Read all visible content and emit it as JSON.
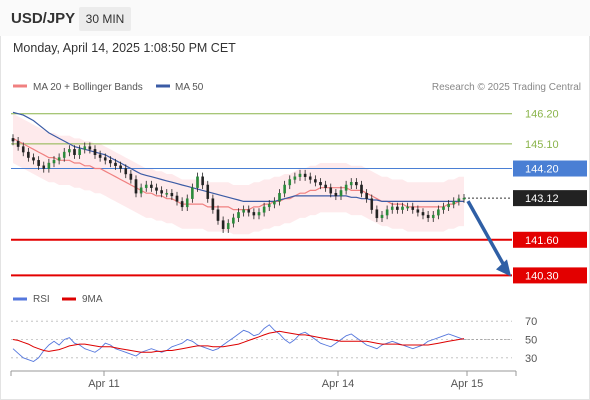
{
  "header": {
    "pair": "USD/JPY",
    "timeframe": "30 MIN",
    "datetime": "Monday, April 14, 2025 1:08:50 PM CET"
  },
  "legend": {
    "ma20_bollinger": "MA 20 + Bollinger Bands",
    "ma50": "MA 50",
    "credit": "Research © 2025 Trading Central",
    "rsi": "RSI",
    "rsi_ma": "9MA"
  },
  "colors": {
    "ma20": "#f08080",
    "ma50": "#3b5ba5",
    "band": "#fde3e6",
    "resistance": "#8ab44a",
    "pivot": "#4a7fd4",
    "support": "#e30000",
    "arrow": "#2f5fa5",
    "rsi": "#5577dd",
    "rsi_ma": "#dd0000"
  },
  "chart_data": [
    {
      "type": "line",
      "subtype": "candlestick",
      "title": "USD/JPY",
      "x_tick_labels": [
        "Apr 11",
        "Apr 14",
        "Apr 15"
      ],
      "ylim": [
        139.95,
        146.7
      ],
      "levels": [
        {
          "name": "resistance_2",
          "value": 146.2,
          "label": "146.20",
          "kind": "resistance"
        },
        {
          "name": "resistance_1",
          "value": 145.1,
          "label": "145.10",
          "kind": "resistance"
        },
        {
          "name": "pivot",
          "value": 144.2,
          "label": "144.20",
          "kind": "pivot"
        },
        {
          "name": "last_price",
          "value": 143.12,
          "label": "143.12",
          "kind": "last"
        },
        {
          "name": "support_1",
          "value": 141.6,
          "label": "141.60",
          "kind": "support"
        },
        {
          "name": "support_2",
          "value": 140.3,
          "label": "140.30",
          "kind": "support"
        }
      ],
      "candles_close": [
        145.2,
        145.0,
        144.8,
        144.6,
        144.5,
        144.3,
        144.2,
        144.4,
        144.5,
        144.6,
        144.8,
        144.9,
        144.7,
        144.9,
        145.0,
        144.9,
        144.7,
        144.6,
        144.5,
        144.4,
        144.3,
        144.2,
        144.0,
        143.8,
        143.3,
        143.5,
        143.6,
        143.5,
        143.4,
        143.3,
        143.3,
        143.2,
        143.0,
        142.8,
        143.1,
        143.5,
        143.9,
        143.6,
        143.1,
        142.7,
        142.3,
        142.0,
        142.2,
        142.4,
        142.6,
        142.7,
        142.6,
        142.5,
        142.6,
        142.8,
        142.9,
        143.0,
        143.3,
        143.6,
        143.8,
        143.9,
        144.0,
        143.9,
        143.8,
        143.7,
        143.6,
        143.5,
        143.3,
        143.2,
        143.4,
        143.6,
        143.7,
        143.6,
        143.3,
        143.1,
        142.7,
        142.4,
        142.5,
        142.7,
        142.8,
        142.7,
        142.8,
        142.8,
        142.7,
        142.6,
        142.5,
        142.4,
        142.5,
        142.7,
        142.8,
        142.9,
        143.0,
        143.1,
        143.12
      ],
      "ma20": [
        145.3,
        145.2,
        145.1,
        145.0,
        144.9,
        144.8,
        144.7,
        144.6,
        144.6,
        144.5,
        144.5,
        144.5,
        144.4,
        144.4,
        144.3,
        144.3,
        144.2,
        144.2,
        144.1,
        144.0,
        143.9,
        143.8,
        143.7,
        143.6,
        143.5,
        143.4,
        143.3,
        143.3,
        143.2,
        143.2,
        143.1,
        143.1,
        143.0,
        142.9,
        142.9,
        142.9,
        142.9,
        142.9,
        142.8,
        142.8,
        142.8,
        142.8,
        142.8,
        142.7,
        142.7,
        142.7,
        142.7,
        142.8,
        142.8,
        142.9,
        142.9,
        143.0,
        143.0,
        143.1,
        143.1,
        143.2,
        143.3,
        143.3,
        143.4,
        143.4,
        143.5,
        143.5,
        143.5,
        143.5,
        143.5,
        143.5,
        143.4,
        143.4,
        143.4,
        143.3,
        143.2,
        143.1,
        143.0,
        143.0,
        142.9,
        142.9,
        142.9,
        142.8,
        142.8,
        142.8,
        142.8,
        142.8,
        142.8,
        142.8,
        142.8,
        142.9,
        142.9,
        143.0,
        143.0
      ],
      "ma50": [
        146.25,
        146.2,
        146.15,
        146.05,
        145.95,
        145.8,
        145.65,
        145.5,
        145.4,
        145.3,
        145.2,
        145.1,
        145.0,
        144.95,
        144.9,
        144.85,
        144.8,
        144.75,
        144.7,
        144.6,
        144.5,
        144.4,
        144.3,
        144.2,
        144.1,
        144.0,
        143.95,
        143.9,
        143.85,
        143.8,
        143.75,
        143.7,
        143.65,
        143.6,
        143.55,
        143.5,
        143.45,
        143.4,
        143.35,
        143.3,
        143.25,
        143.2,
        143.15,
        143.1,
        143.05,
        143.0,
        143.0,
        143.0,
        143.0,
        143.0,
        143.0,
        143.0,
        143.05,
        143.1,
        143.15,
        143.2,
        143.2,
        143.2,
        143.2,
        143.2,
        143.2,
        143.2,
        143.2,
        143.2,
        143.2,
        143.2,
        143.15,
        143.15,
        143.1,
        143.1,
        143.05,
        143.05,
        143.0,
        143.0,
        143.0,
        143.0,
        143.0,
        143.0,
        143.0,
        143.0,
        143.0,
        143.0,
        143.0,
        143.0,
        143.0,
        143.0,
        143.0,
        143.0,
        143.0
      ],
      "bollinger_width": 0.9,
      "forecast_arrow": {
        "from": 143.12,
        "to": 140.3
      }
    },
    {
      "type": "line",
      "title": "RSI",
      "ylim": [
        20,
        80
      ],
      "y_tick_labels": [
        "70",
        "50",
        "30"
      ],
      "y_ticks": [
        70,
        50,
        30
      ],
      "series": [
        {
          "name": "RSI",
          "values": [
            40,
            35,
            30,
            28,
            26,
            30,
            38,
            44,
            48,
            44,
            50,
            52,
            46,
            44,
            40,
            38,
            36,
            40,
            46,
            44,
            40,
            38,
            36,
            34,
            32,
            36,
            38,
            40,
            38,
            36,
            38,
            42,
            44,
            46,
            50,
            48,
            44,
            42,
            40,
            38,
            40,
            44,
            48,
            52,
            56,
            60,
            58,
            54,
            56,
            62,
            66,
            60,
            56,
            50,
            46,
            50,
            56,
            58,
            54,
            50,
            46,
            44,
            42,
            46,
            50,
            54,
            56,
            52,
            48,
            44,
            42,
            40,
            44,
            46,
            48,
            46,
            44,
            42,
            40,
            42,
            44,
            48,
            50,
            52,
            54,
            56,
            54,
            52,
            50
          ]
        },
        {
          "name": "9MA",
          "values": [
            50,
            49,
            47,
            45,
            42,
            40,
            38,
            37,
            38,
            39,
            41,
            43,
            44,
            45,
            45,
            44,
            43,
            42,
            42,
            42,
            41,
            40,
            39,
            38,
            37,
            36,
            36,
            36,
            37,
            37,
            38,
            38,
            39,
            40,
            41,
            42,
            43,
            43,
            43,
            42,
            42,
            42,
            43,
            44,
            45,
            47,
            49,
            51,
            53,
            55,
            57,
            58,
            59,
            58,
            57,
            56,
            55,
            55,
            54,
            53,
            52,
            51,
            50,
            49,
            48,
            48,
            48,
            48,
            48,
            48,
            47,
            46,
            45,
            45,
            45,
            45,
            44,
            44,
            44,
            44,
            44,
            44,
            45,
            46,
            47,
            48,
            49,
            50,
            51
          ]
        }
      ]
    }
  ]
}
